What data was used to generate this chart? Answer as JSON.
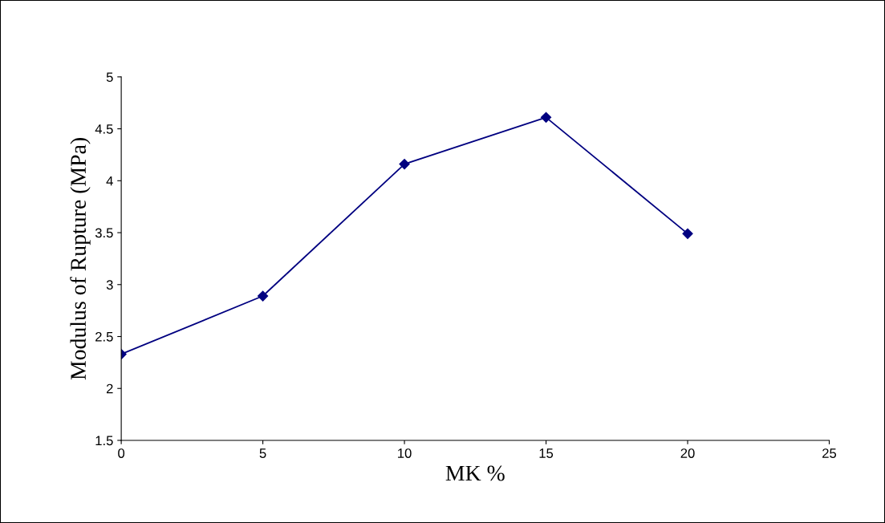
{
  "chart_data": {
    "type": "line",
    "xlabel": "MK %",
    "ylabel": "Modulus of Rupture (MPa)",
    "x": [
      0,
      5,
      10,
      15,
      20
    ],
    "series": [
      {
        "color": "#000080",
        "values": [
          2.33,
          2.89,
          4.16,
          4.61,
          3.49
        ]
      }
    ],
    "xlim": [
      0,
      25
    ],
    "xticks": [
      0,
      5,
      10,
      15,
      20,
      25
    ],
    "ylim": [
      1.5,
      5
    ],
    "yticks": [
      1.5,
      2,
      2.5,
      3,
      3.5,
      4,
      4.5,
      5
    ],
    "grid": false,
    "legend": false,
    "marker": "diamond",
    "line_style": "solid"
  }
}
